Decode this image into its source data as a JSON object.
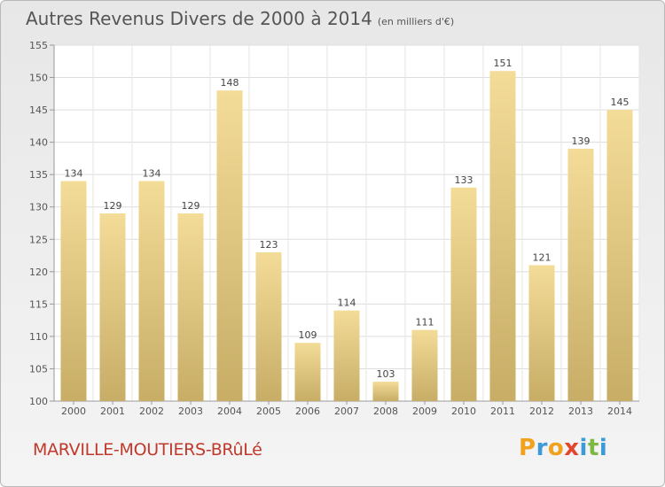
{
  "title": "Autres Revenus Divers de 2000 à 2014",
  "subtitle": "(en milliers d'€)",
  "city": "MARVILLE-MOUTIERS-BRûLé",
  "logo": {
    "text": "Proxiti",
    "colors": [
      "#f0a21e",
      "#3c9ad6",
      "#f0a21e",
      "#e2462f",
      "#3c9ad6",
      "#7cb843",
      "#3c9ad6"
    ]
  },
  "chart_data": {
    "type": "bar",
    "categories": [
      "2000",
      "2001",
      "2002",
      "2003",
      "2004",
      "2005",
      "2006",
      "2007",
      "2008",
      "2009",
      "2010",
      "2011",
      "2012",
      "2013",
      "2014"
    ],
    "values": [
      134,
      129,
      134,
      129,
      148,
      123,
      109,
      114,
      103,
      111,
      133,
      151,
      121,
      139,
      145
    ],
    "ylim": [
      100,
      155
    ],
    "yticks": [
      100,
      105,
      110,
      115,
      120,
      125,
      130,
      135,
      140,
      145,
      150,
      155
    ],
    "grid": true,
    "bar_color_top": "#f3dc98",
    "bar_color_bottom": "#c7ad66"
  }
}
